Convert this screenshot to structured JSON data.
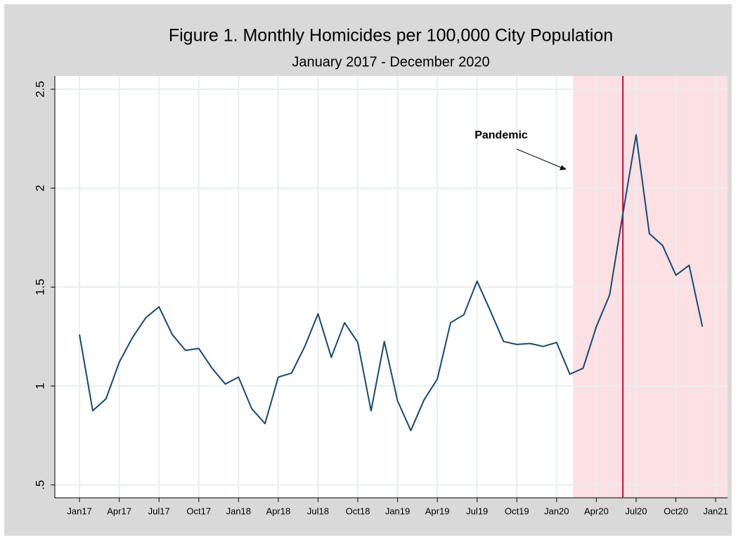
{
  "chart_data": {
    "type": "line",
    "title": "Figure 1. Monthly Homicides per 100,000 City Population",
    "subtitle": "January 2017 - December 2020",
    "x": [
      684,
      685,
      686,
      687,
      688,
      689,
      690,
      691,
      692,
      693,
      694,
      695,
      696,
      697,
      698,
      699,
      700,
      701,
      702,
      703,
      704,
      705,
      706,
      707,
      708,
      709,
      710,
      711,
      712,
      713,
      714,
      715,
      716,
      717,
      718,
      719,
      720,
      721,
      722,
      723,
      724,
      725,
      726,
      727,
      728,
      729,
      730,
      731
    ],
    "series": [
      {
        "color": "#1a476f",
        "values": [
          1.26,
          0.875,
          0.935,
          1.12,
          1.245,
          1.345,
          1.4,
          1.26,
          1.18,
          1.19,
          1.09,
          1.01,
          1.045,
          0.885,
          0.81,
          1.045,
          1.065,
          1.2,
          1.365,
          1.145,
          1.32,
          1.22,
          0.875,
          1.225,
          0.925,
          0.775,
          0.93,
          1.035,
          1.32,
          1.36,
          1.53,
          1.38,
          1.225,
          1.21,
          1.215,
          1.2,
          1.22,
          1.06,
          1.09,
          1.3,
          1.46,
          1.87,
          2.27,
          1.77,
          1.71,
          1.56,
          1.61,
          1.3
        ]
      }
    ],
    "xlim": [
      682.14,
      732.9
    ],
    "xticks": [
      {
        "value": 684,
        "label": "Jan17"
      },
      {
        "value": 687,
        "label": "Apr17"
      },
      {
        "value": 690,
        "label": "Jul17"
      },
      {
        "value": 693,
        "label": "Oct17"
      },
      {
        "value": 696,
        "label": "Jan18"
      },
      {
        "value": 699,
        "label": "Apr18"
      },
      {
        "value": 702,
        "label": "Jul18"
      },
      {
        "value": 705,
        "label": "Oct18"
      },
      {
        "value": 708,
        "label": "Jan19"
      },
      {
        "value": 711,
        "label": "Apr19"
      },
      {
        "value": 714,
        "label": "Jul19"
      },
      {
        "value": 717,
        "label": "Oct19"
      },
      {
        "value": 720,
        "label": "Jan20"
      },
      {
        "value": 723,
        "label": "Apr20"
      },
      {
        "value": 726,
        "label": "Jul20"
      },
      {
        "value": 729,
        "label": "Oct20"
      },
      {
        "value": 732,
        "label": "Jan21"
      }
    ],
    "ylim": [
      0.435,
      2.567
    ],
    "yticks": [
      {
        "value": 0.5,
        "label": ".5"
      },
      1,
      1.5,
      2,
      2.5
    ],
    "grid": true,
    "shaded_region": {
      "x": [
        721.24,
        732.9
      ],
      "color": "#fde0e3"
    },
    "vline": {
      "x": 725,
      "color": "#c8102e"
    },
    "annotation": {
      "text": "Pandemic"
    }
  }
}
